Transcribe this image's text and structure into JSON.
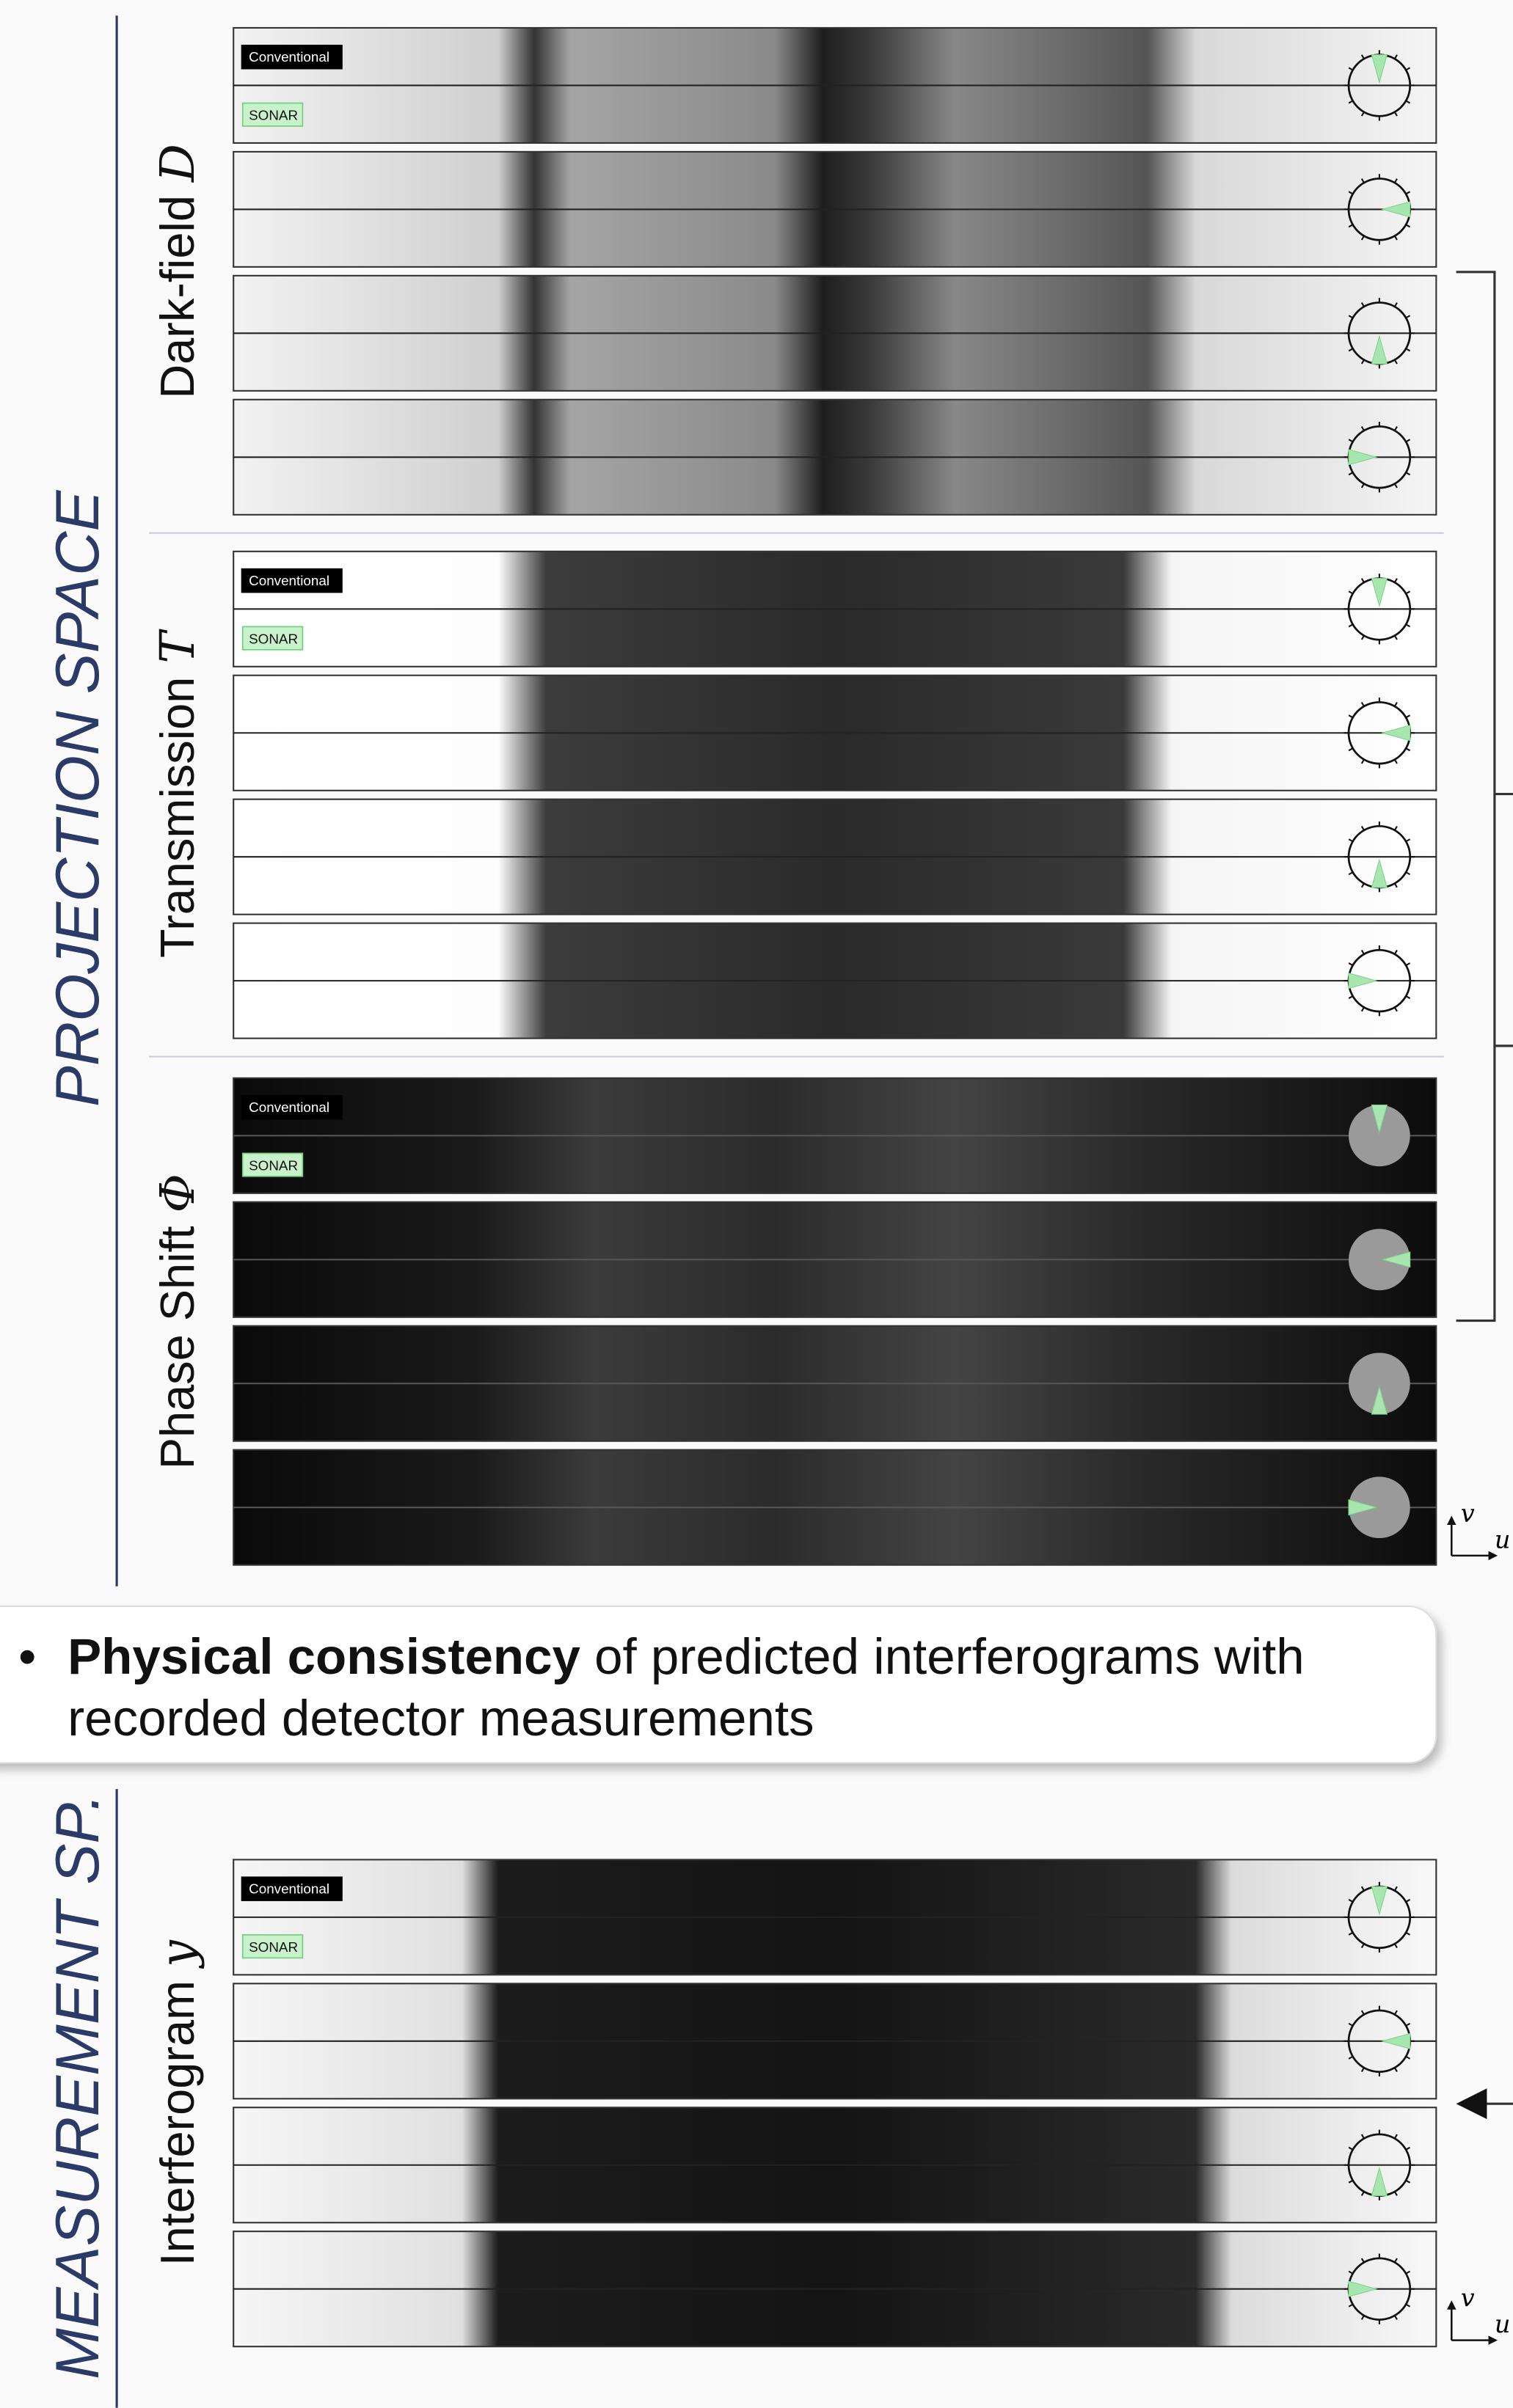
{
  "projection_space": {
    "title": "PROJECTION  SPACE",
    "groups": [
      {
        "label": "Dark-field ",
        "symbol": "D",
        "badges": [
          "Conventional",
          "SONAR"
        ]
      },
      {
        "label": "Transmission ",
        "symbol": "T",
        "badges": [
          "Conventional",
          "SONAR"
        ]
      },
      {
        "label": "Phase Shift ",
        "symbol": "Φ",
        "badges": [
          "Conventional",
          "SONAR"
        ]
      }
    ]
  },
  "callout": {
    "bullet": "•",
    "bold": "Physical consistency",
    "line1": " of predicted interferograms with",
    "line2": "recorded detector measurements"
  },
  "measurement_space": {
    "title": "MEASUREMENT  SP.",
    "groups": [
      {
        "label": "Interferogram ",
        "symbol": "y",
        "badges": [
          "Conventional",
          "SONAR"
        ]
      }
    ]
  },
  "axes": [
    {
      "v": "v",
      "u": "u"
    },
    {
      "v": "v",
      "u": "u"
    }
  ]
}
